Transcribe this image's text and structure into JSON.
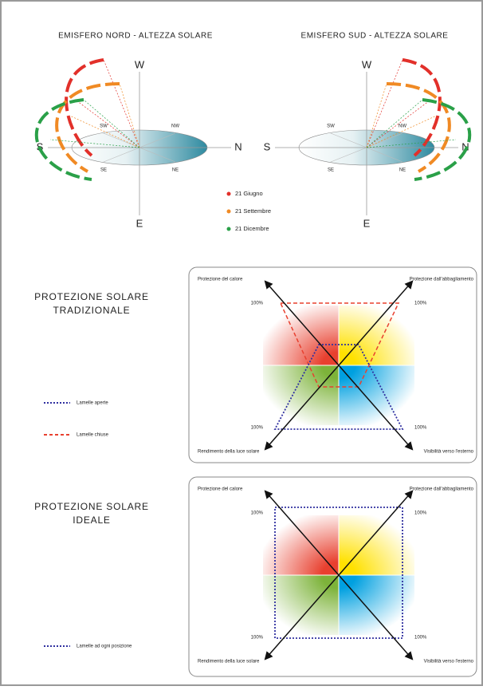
{
  "sun_paths": [
    {
      "title": "EMISFERO NORD - ALTEZZA SOLARE",
      "w": "W",
      "n": "N",
      "s": "S",
      "e": "E",
      "nw": "NW",
      "sw": "SW",
      "ne": "NE",
      "se": "SE"
    },
    {
      "title": "EMISFERO SUD - ALTEZZA SOLARE",
      "w": "W",
      "n": "N",
      "s": "S",
      "e": "E",
      "nw": "NW",
      "sw": "SW",
      "ne": "NE",
      "se": "SE"
    }
  ],
  "dates": [
    "21 Giugno",
    "21 Settembre",
    "21 Dicembre"
  ],
  "panels": [
    {
      "title": [
        "PROTEZIONE SOLARE",
        "TRADIZIONALE"
      ],
      "labels": [
        "Protezione del calore",
        "Protezione dall'abbagliamento",
        "Rendimento della luce solare",
        "Visibilità verso l'esterno"
      ],
      "percent": [
        "100%",
        "100%",
        "100%",
        "100%"
      ],
      "legend": [
        "Lamelle aperte",
        "Lamelle chiuse"
      ]
    },
    {
      "title": [
        "PROTEZIONE SOLARE",
        "IDEALE"
      ],
      "labels": [
        "Protezione del calore",
        "Protezione dall'abbagliamento",
        "Rendimento della luce solare",
        "Visibilità verso l'esterno"
      ],
      "percent": [
        "100%",
        "100%",
        "100%",
        "100%"
      ],
      "legend": [
        "Lamelle ad ogni posizione"
      ]
    }
  ]
}
